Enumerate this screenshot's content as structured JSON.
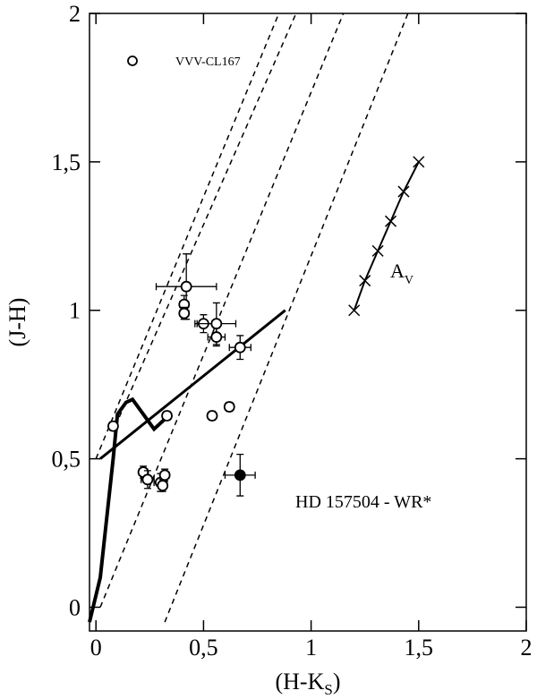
{
  "chart_data": {
    "type": "scatter",
    "x_label": {
      "main": "(H-K",
      "sub": "S",
      "end": ")"
    },
    "y_label": "(J-H)",
    "xlim": [
      -0.03,
      2.0
    ],
    "ylim": [
      -0.08,
      2.0
    ],
    "xticks": [
      0,
      {
        "value": 0.5,
        "label": "0,5"
      },
      1,
      {
        "value": 1.5,
        "label": "1,5"
      },
      2
    ],
    "yticks": [
      0,
      {
        "value": 0.5,
        "label": "0,5"
      },
      1,
      {
        "value": 1.5,
        "label": "1,5"
      },
      2
    ],
    "legend": "upper left",
    "series": [
      {
        "name": "VVV-CL167",
        "marker": "open-circle",
        "color": "#000000",
        "x": [
          0.08,
          0.33,
          0.22,
          0.24,
          0.3,
          0.31,
          0.32,
          0.42,
          0.41,
          0.41,
          0.5,
          0.56,
          0.56,
          0.67,
          0.54,
          0.62
        ],
        "values": [
          0.61,
          0.645,
          0.455,
          0.43,
          0.42,
          0.41,
          0.445,
          1.08,
          1.02,
          0.99,
          0.955,
          0.955,
          0.91,
          0.875,
          0.645,
          0.675
        ],
        "xerr": [
          0.02,
          0.02,
          0.02,
          0.03,
          0.03,
          0.02,
          0.02,
          0.14,
          0.02,
          0.02,
          0.04,
          0.09,
          0.04,
          0.05,
          0.02,
          0.02
        ],
        "yerr": [
          0.015,
          0.015,
          0.02,
          0.03,
          0.03,
          0.02,
          0.02,
          0.11,
          0.03,
          0.02,
          0.03,
          0.07,
          0.03,
          0.04,
          0.015,
          0.015
        ]
      },
      {
        "marker": "filled-circle",
        "color": "#000000",
        "x": [
          0.67
        ],
        "values": [
          0.445
        ],
        "xerr": [
          0.07
        ],
        "yerr": [
          0.07
        ]
      }
    ],
    "lines": [
      {
        "style": "solid",
        "width": 4,
        "x": [
          -0.03,
          0.02,
          0.05,
          0.08,
          0.1,
          0.14,
          0.17,
          0.22,
          0.27,
          0.33
        ],
        "y": [
          -0.05,
          0.1,
          0.3,
          0.5,
          0.65,
          0.69,
          0.7,
          0.65,
          0.6,
          0.64
        ]
      },
      {
        "style": "solid",
        "width": 3,
        "x": [
          0.02,
          0.88
        ],
        "y": [
          0.5,
          1.0
        ]
      },
      {
        "style": "dashed",
        "width": 1.5,
        "x": [
          0.0,
          0.85
        ],
        "y": [
          0.5,
          2.0
        ]
      },
      {
        "style": "dashed",
        "width": 1.5,
        "x": [
          0.09,
          0.93
        ],
        "y": [
          0.61,
          2.0
        ]
      },
      {
        "style": "dashed",
        "width": 1.5,
        "x": [
          0.02,
          1.15
        ],
        "y": [
          0.0,
          2.0
        ]
      },
      {
        "style": "dashed",
        "width": 1.5,
        "x": [
          0.32,
          1.45
        ],
        "y": [
          -0.05,
          2.0
        ]
      }
    ],
    "reddening_vector": {
      "label": {
        "main": "A",
        "sub": "V"
      },
      "marker": "x",
      "x": [
        1.2,
        1.25,
        1.31,
        1.37,
        1.43,
        1.5
      ],
      "y": [
        1.0,
        1.1,
        1.2,
        1.3,
        1.4,
        1.5
      ]
    },
    "annotation": "HD 157504  - WR*"
  }
}
